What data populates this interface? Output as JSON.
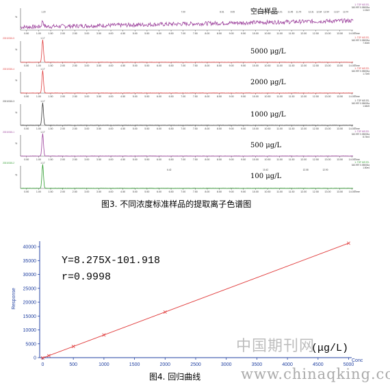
{
  "figure3": {
    "caption": "图3. 不同浓度标准样品的提取离子色谱图",
    "chart_data": {
      "type": "line",
      "x_ticks": [
        "0.50",
        "1.00",
        "1.50",
        "2.00",
        "2.50",
        "3.00",
        "3.50",
        "4.00",
        "4.50",
        "5.00",
        "5.50",
        "6.00",
        "6.50",
        "7.00",
        "7.50",
        "8.00",
        "8.50",
        "9.00",
        "9.50",
        "10.00",
        "10.50",
        "11.00",
        "11.50",
        "12.00",
        "12.50",
        "13.00",
        "13.50",
        "14.00"
      ],
      "x_unit": "Time",
      "traces": [
        {
          "label": "空白样品",
          "color": "#9b3f9b",
          "peak_rt": 1.17,
          "noise": true,
          "sample_id": "",
          "header": [
            "1: TOF MS ES-",
            "343.997 0.0500Da",
            "1.15e3"
          ],
          "peak_labels": [
            {
              "x": 1.2,
              "text": "1.20"
            },
            {
              "x": 7.0,
              "text": "7.00"
            },
            {
              "x": 8.61,
              "text": "8.61"
            },
            {
              "x": 9.05,
              "text": "9.05"
            },
            {
              "x": 10.15,
              "text": "10.15"
            },
            {
              "x": 10.38,
              "text": "10.38"
            },
            {
              "x": 10.72,
              "text": "10.72"
            },
            {
              "x": 11.01,
              "text": "11.01"
            },
            {
              "x": 11.45,
              "text": "11.45"
            },
            {
              "x": 11.79,
              "text": "11.79"
            },
            {
              "x": 12.31,
              "text": "12.31"
            },
            {
              "x": 12.64,
              "text": "12.64"
            },
            {
              "x": 12.94,
              "text": "12.94"
            },
            {
              "x": 13.37,
              "text": "13.37"
            },
            {
              "x": 13.74,
              "text": "13.74"
            }
          ]
        },
        {
          "label": "5000 μg/L",
          "color": "#e03a3a",
          "peak_rt": 1.17,
          "noise": false,
          "sample_id": "20210315-5",
          "header": [
            "1: TOF MS ES-",
            "343.997 0.0500Da",
            "7.00e5"
          ],
          "peak_labels": [
            {
              "x": 1.17,
              "text": "1.17"
            }
          ]
        },
        {
          "label": "2000 μg/L",
          "color": "#e03a3a",
          "peak_rt": 1.17,
          "noise": false,
          "sample_id": "20210315-4",
          "header": [
            "1: TOF MS ES-",
            "343.997 0.0500Da",
            "1.72e5"
          ],
          "peak_labels": [
            {
              "x": 1.17,
              "text": "1.17"
            }
          ]
        },
        {
          "label": "1000 μg/L",
          "color": "#333333",
          "peak_rt": 1.17,
          "noise": false,
          "sample_id": "20210315-3",
          "header": [
            "1: TOF MS ES-",
            "343.997 0.0500Da",
            "1.64e5"
          ],
          "peak_labels": [
            {
              "x": 1.17,
              "text": "1.17"
            }
          ]
        },
        {
          "label": "500 μg/L",
          "color": "#9b3f9b",
          "peak_rt": 1.17,
          "noise": false,
          "sample_id": "20210315-1",
          "header": [
            "1: TOF MS ES-",
            "343.997 0.0500Da",
            "8.74e4"
          ],
          "peak_labels": [
            {
              "x": 1.17,
              "text": "1.17"
            }
          ]
        },
        {
          "label": "100 μg/L",
          "color": "#2a9a2a",
          "peak_rt": 1.17,
          "noise": false,
          "sample_id": "20210315-2",
          "header": [
            "1: TOF MS ES-",
            "343.997 0.0500Da",
            "1.50e4"
          ],
          "peak_labels": [
            {
              "x": 1.17,
              "text": "1.17"
            },
            {
              "x": 6.42,
              "text": "6.42"
            },
            {
              "x": 10.42,
              "text": "10.42"
            },
            {
              "x": 12.08,
              "text": "12.08"
            },
            {
              "x": 12.9,
              "text": "12.90"
            }
          ]
        }
      ]
    }
  },
  "figure4": {
    "caption": "图4. 回归曲线",
    "chart_data": {
      "type": "line",
      "title": "",
      "xlabel": "Conc",
      "ylabel": "Response",
      "xlim": [
        -50,
        5050
      ],
      "ylim": [
        0,
        42000
      ],
      "x_ticks": [
        0,
        500,
        1000,
        1500,
        2000,
        2500,
        3000,
        3500,
        4000,
        4500,
        5000
      ],
      "y_ticks": [
        0,
        5000,
        10000,
        15000,
        20000,
        25000,
        30000,
        35000,
        40000
      ],
      "points": [
        {
          "x": 0,
          "y": -101.9
        },
        {
          "x": 100,
          "y": 725.6
        },
        {
          "x": 500,
          "y": 4035.6
        },
        {
          "x": 1000,
          "y": 8173.1
        },
        {
          "x": 2000,
          "y": 16448.1
        },
        {
          "x": 5000,
          "y": 41273.1
        }
      ],
      "fit": {
        "slope": 8.275,
        "intercept": -101.918
      },
      "equation": "Y=8.275X-101.918",
      "r_text": "r=0.9998",
      "unit_label": "(μg/L)",
      "color": "#e03a3a"
    }
  },
  "watermark": {
    "text_cn": "中国期刊网",
    "url": "www.chinaqking.com"
  }
}
